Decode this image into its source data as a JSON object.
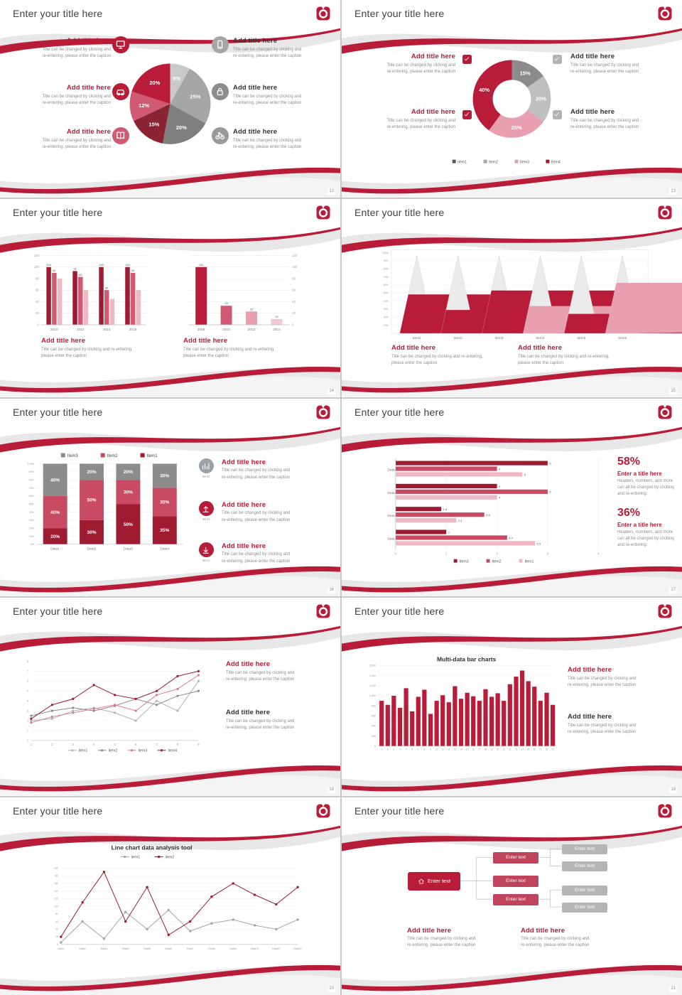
{
  "theme": {
    "accent": "#b81c38",
    "accent_dark": "#9e1b32",
    "rose": "#cf5a72",
    "pink": "#e8a0b0",
    "light_pink": "#f0b8c4",
    "gray_dark": "#595959",
    "gray": "#8c8c8c",
    "gray_mid": "#a6a6a6",
    "gray_light": "#c9c9c9",
    "text_dark": "#333333",
    "text_gray": "#8e8e8e"
  },
  "common": {
    "slide_title": "Enter your title here",
    "callout_title": "Add title here",
    "callout_caption_l1": "Title can be changed by clicking and",
    "callout_caption_l2": "re-entering, please enter the caption",
    "caption_wide_l1": "Title can be changed by clicking and re-entering,",
    "caption_wide_l2": "please enter the caption"
  },
  "chart_data": [
    {
      "slide": "12",
      "type": "pie",
      "values": [
        8,
        25,
        20,
        15,
        12,
        20
      ],
      "labels": [
        "8%",
        "25%",
        "20%",
        "15%",
        "12%",
        "20%"
      ],
      "colors": [
        "#c9c9c9",
        "#a6a6a6",
        "#7f7f7f",
        "#8a2332",
        "#cf5a72",
        "#b81c38"
      ]
    },
    {
      "slide": "13",
      "type": "pie",
      "subtype": "donut",
      "values": [
        15,
        20,
        25,
        40
      ],
      "labels": [
        "15%",
        "20%",
        "25%",
        "40%"
      ],
      "colors": [
        "#8c8c8c",
        "#bfbfbf",
        "#e8a0b0",
        "#b81c38"
      ],
      "legend": [
        {
          "label": "Item1",
          "color": "#595959"
        },
        {
          "label": "Item2",
          "color": "#a6a6a6"
        },
        {
          "label": "Item3",
          "color": "#e8a0b0"
        },
        {
          "label": "Item4",
          "color": "#9e1b32"
        }
      ]
    },
    {
      "slide": "14",
      "type": "bar",
      "categories": [
        "2010",
        "2012",
        "2014",
        "2016"
      ],
      "series": [
        {
          "name": "Series1",
          "color": "#9e1b32",
          "values": [
            100,
            93,
            100,
            100
          ]
        },
        {
          "name": "Series2",
          "color": "#cf5a72",
          "values": [
            90,
            83,
            60,
            90
          ]
        },
        {
          "name": "Series3",
          "color": "#f0b8c4",
          "values": [
            80,
            60,
            45,
            60
          ]
        }
      ],
      "ylim": [
        0,
        120
      ],
      "ystep": 20
    },
    {
      "slide": "14",
      "type": "bar",
      "categories": [
        "2008",
        "2010",
        "2012",
        "2014"
      ],
      "values": [
        100,
        33,
        23,
        10
      ],
      "labels": [
        "100",
        "33",
        "23",
        "10"
      ],
      "colors": [
        "#b81c38",
        "#cf5a72",
        "#e8a0b0",
        "#f0c9d2"
      ],
      "ylim": [
        0,
        120
      ],
      "ystep": 20,
      "axis": "right"
    },
    {
      "slide": "15",
      "type": "cone",
      "categories": [
        "Item1",
        "Item2",
        "Item3",
        "Item4",
        "Item5",
        "Item6"
      ],
      "fill_percent": [
        50,
        30,
        55,
        35,
        25,
        65
      ],
      "fill_colors": [
        "#b81c38",
        "#b81c38",
        "#b81c38",
        "#e8a0b0",
        "#b81c38",
        "#e8a0b0"
      ],
      "yticks": [
        "100%",
        "90%",
        "80%",
        "70%",
        "60%",
        "50%",
        "40%",
        "30%",
        "20%",
        "10%"
      ]
    },
    {
      "slide": "16",
      "type": "stacked-bar",
      "categories": [
        "Data1",
        "Data2",
        "Data3",
        "Data4"
      ],
      "series": [
        {
          "name": "Item1",
          "color": "#9e1b32",
          "values": [
            20,
            30,
            50,
            35
          ]
        },
        {
          "name": "Item2",
          "color": "#c84a63",
          "values": [
            40,
            50,
            30,
            35
          ]
        },
        {
          "name": "Item3",
          "color": "#8c8c8c",
          "values": [
            40,
            20,
            20,
            30
          ]
        }
      ],
      "legend_order": [
        "Item3",
        "Item2",
        "Item1"
      ],
      "ylim": [
        0,
        100
      ],
      "ystep": 10
    },
    {
      "slide": "17",
      "type": "hbar",
      "categories": [
        "Data4",
        "Data3",
        "Data2",
        "Data1"
      ],
      "series": [
        {
          "name": "Item3",
          "color": "#9e1b32",
          "values": [
            6,
            4,
            1.8,
            2
          ]
        },
        {
          "name": "Item2",
          "color": "#c84a63",
          "values": [
            4,
            6,
            3.5,
            4.4
          ]
        },
        {
          "name": "Item1",
          "color": "#f0b8c4",
          "values": [
            5,
            4,
            2.4,
            5.5
          ]
        }
      ],
      "xlim": [
        0,
        8
      ],
      "xticks": [
        0,
        2,
        4,
        6,
        8
      ]
    },
    {
      "slide": "18",
      "type": "line",
      "x": [
        1,
        2,
        3,
        4,
        5,
        6,
        7,
        8,
        9
      ],
      "series": [
        {
          "name": "item1",
          "color": "#b3b3b3",
          "values": [
            2,
            2.2,
            3,
            3.3,
            2.8,
            2,
            4,
            3,
            6
          ]
        },
        {
          "name": "item2",
          "color": "#8c8c8c",
          "values": [
            2.5,
            3,
            3.3,
            3,
            3.5,
            4.2,
            3.6,
            4.5,
            5
          ]
        },
        {
          "name": "item3",
          "color": "#d97b92",
          "values": [
            1.8,
            2.4,
            2.8,
            3.2,
            3.6,
            3,
            4.6,
            5.2,
            6.6
          ]
        },
        {
          "name": "item4",
          "color": "#9e1b32",
          "values": [
            2.2,
            3.6,
            4.2,
            5.6,
            4.6,
            4.2,
            5,
            6.5,
            7
          ]
        }
      ],
      "ylim": [
        0,
        8
      ],
      "ystep": 1
    },
    {
      "slide": "19",
      "type": "bar",
      "title": "Multi-data bar charts",
      "x": [
        1,
        2,
        3,
        4,
        5,
        6,
        7,
        8,
        9,
        10,
        11,
        12,
        13,
        14,
        15,
        16,
        17,
        18,
        19,
        20,
        21,
        22,
        23,
        24,
        25,
        26,
        27,
        28,
        29
      ],
      "values": [
        900,
        820,
        1000,
        760,
        1150,
        690,
        980,
        1120,
        640,
        900,
        1010,
        870,
        1190,
        940,
        1060,
        990,
        900,
        1130,
        980,
        1050,
        900,
        1230,
        1380,
        1500,
        1290,
        1180,
        900,
        1060,
        820
      ],
      "color": "#b81c38",
      "ylim": [
        0,
        1600
      ],
      "yticks": [
        "0",
        "200",
        "400",
        "600",
        "800",
        "1,000",
        "1,200",
        "1,400",
        "1,600"
      ]
    },
    {
      "slide": "20",
      "type": "line",
      "title": "Line chart data analysis tool",
      "categories": [
        "Data1",
        "Data2",
        "Data3",
        "Data4",
        "Data5",
        "Data6",
        "Data7",
        "Data8",
        "Data9",
        "Data10",
        "Data11",
        "Data12"
      ],
      "series": [
        {
          "name": "item1",
          "color": "#a6a6a6",
          "values": [
            5,
            60,
            15,
            85,
            40,
            90,
            35,
            55,
            65,
            50,
            40,
            65
          ]
        },
        {
          "name": "item2",
          "color": "#9e1b32",
          "values": [
            20,
            110,
            190,
            60,
            150,
            25,
            60,
            125,
            160,
            130,
            105,
            150
          ]
        }
      ],
      "ylim": [
        0,
        200
      ],
      "ystep": 20
    }
  ],
  "slides": [
    {
      "page": "12",
      "layout": "pie-callouts",
      "chart": 0,
      "callouts": [
        {
          "side": "left",
          "icon": "monitor-icon",
          "icon_color": "#b81c38",
          "title_color": "#b81c38"
        },
        {
          "side": "left",
          "icon": "car-icon",
          "icon_color": "#b81c38",
          "title_color": "#b81c38"
        },
        {
          "side": "left",
          "icon": "book-icon",
          "icon_color": "#cf5a72",
          "title_color": "#b81c38"
        },
        {
          "side": "right",
          "icon": "phone-icon",
          "icon_color": "#a6a6a6",
          "title_color": "#333333"
        },
        {
          "side": "right",
          "icon": "lock-icon",
          "icon_color": "#8c8c8c",
          "title_color": "#333333"
        },
        {
          "side": "right",
          "icon": "bike-icon",
          "icon_color": "#9a9a9a",
          "title_color": "#333333"
        }
      ]
    },
    {
      "page": "13",
      "layout": "donut-callouts",
      "chart": 1,
      "callouts": [
        {
          "side": "left",
          "check_color": "#b81c38",
          "title_color": "#b81c38"
        },
        {
          "side": "left",
          "check_color": "#b81c38",
          "title_color": "#b81c38"
        },
        {
          "side": "right",
          "check_color": "#b3b3b3",
          "title_color": "#333333"
        },
        {
          "side": "right",
          "check_color": "#b3b3b3",
          "title_color": "#333333"
        }
      ]
    },
    {
      "page": "14",
      "layout": "two-bars",
      "charts": [
        2,
        3
      ],
      "captions": [
        {
          "title_color": "#b81c38"
        },
        {
          "title_color": "#b81c38"
        }
      ]
    },
    {
      "page": "15",
      "layout": "cones",
      "chart": 4,
      "captions": [
        {
          "title_color": "#b81c38"
        },
        {
          "title_color": "#b81c38"
        }
      ]
    },
    {
      "page": "16",
      "layout": "stack-callouts",
      "chart": 5,
      "callouts": [
        {
          "icon": "bar-chart-icon",
          "icon_color": "#9aa0a6",
          "icon_label": "Item3",
          "title_color": "#b81c38"
        },
        {
          "icon": "upload-icon",
          "icon_color": "#b81c38",
          "icon_label": "Item2",
          "title_color": "#b81c38"
        },
        {
          "icon": "download-icon",
          "icon_color": "#b81c38",
          "icon_label": "Item1",
          "title_color": "#b81c38"
        }
      ]
    },
    {
      "page": "17",
      "layout": "hbar-stats",
      "chart": 6,
      "stats": [
        {
          "value": "58%",
          "title": "Enter a title here",
          "cap": [
            "Headers, numbers, and more can all be",
            "changed by clicking and re-entering."
          ]
        },
        {
          "value": "36%",
          "title": "Enter a title here",
          "cap": [
            "Headers, numbers, and more can all be",
            "changed by clicking and re-entering."
          ]
        }
      ]
    },
    {
      "page": "18",
      "layout": "line-callouts",
      "chart": 7,
      "captions": [
        {
          "title_color": "#b81c38"
        },
        {
          "title_color": "#333333"
        }
      ]
    },
    {
      "page": "19",
      "layout": "densebar-callouts",
      "chart": 8,
      "captions": [
        {
          "title_color": "#b81c38"
        },
        {
          "title_color": "#333333"
        }
      ]
    },
    {
      "page": "20",
      "layout": "bigline",
      "chart": 9
    },
    {
      "page": "21",
      "layout": "diagram",
      "diagram": {
        "root": {
          "label": "Enter text",
          "icon": "home-icon",
          "color": "#b81c38"
        },
        "mid": [
          {
            "label": "Enter text"
          },
          {
            "label": "Enter text"
          },
          {
            "label": "Enter text"
          }
        ],
        "leaf": [
          {
            "label": "Enter text"
          },
          {
            "label": "Enter text"
          },
          {
            "label": "Enter text"
          },
          {
            "label": "Enter text"
          }
        ],
        "mid_color": "#c0435c",
        "leaf_color": "#b5b5b5"
      },
      "captions": [
        {
          "title_color": "#b81c38"
        },
        {
          "title_color": "#b81c38"
        }
      ]
    }
  ]
}
